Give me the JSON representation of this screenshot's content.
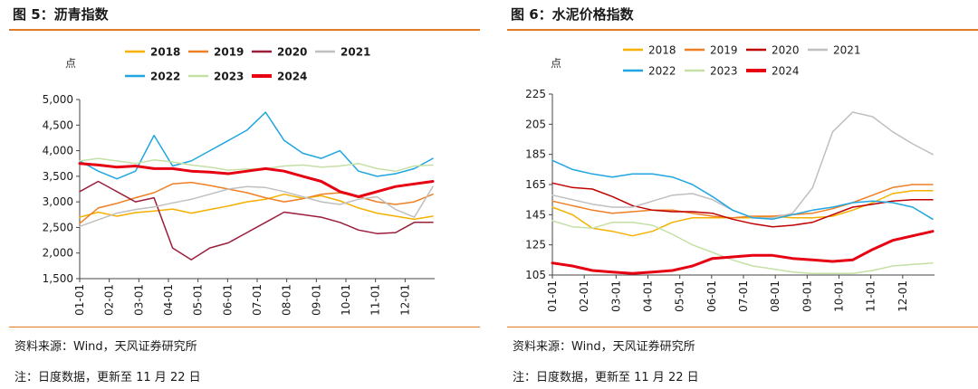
{
  "figure_left": {
    "title": "图 5：沥青指数",
    "source": "资料来源：Wind，天风证券研究所",
    "note": "注：日度数据，更新至 11 月 22 日"
  },
  "figure_right": {
    "title": "图 6：水泥价格指数",
    "source": "资料来源：Wind，天风证券研究所",
    "note": "注：日度数据，更新至 11 月 22 日"
  },
  "chart_data": [
    {
      "type": "line",
      "ylabel": "点",
      "ylim": [
        1500,
        5000
      ],
      "yticks": [
        "1,500",
        "2,000",
        "2,500",
        "3,000",
        "3,500",
        "4,000",
        "4,500",
        "5,000"
      ],
      "xticks": [
        "01-01",
        "02-01",
        "03-01",
        "04-01",
        "05-01",
        "06-01",
        "07-01",
        "08-01",
        "09-01",
        "10-01",
        "11-01",
        "12-01"
      ],
      "legend_position": "top",
      "series": [
        {
          "name": "2018",
          "color": "#f5b000",
          "width": 1.5,
          "y": [
            2700,
            2800,
            2720,
            2790,
            2820,
            2860,
            2780,
            2850,
            2920,
            3000,
            3050,
            3150,
            3070,
            3120,
            3020,
            2880,
            2780,
            2720,
            2660,
            2720
          ]
        },
        {
          "name": "2019",
          "color": "#ef7f24",
          "width": 1.5,
          "y": [
            2580,
            2880,
            2970,
            3080,
            3180,
            3350,
            3380,
            3320,
            3250,
            3180,
            3080,
            3000,
            3060,
            3150,
            3180,
            3100,
            3000,
            2950,
            3000,
            3150
          ]
        },
        {
          "name": "2020",
          "color": "#9b1d3a",
          "width": 1.5,
          "y": [
            3200,
            3400,
            3200,
            3000,
            3080,
            2100,
            1870,
            2100,
            2200,
            2400,
            2600,
            2800,
            2750,
            2700,
            2600,
            2450,
            2380,
            2400,
            2600,
            2600
          ]
        },
        {
          "name": "2021",
          "color": "#bfbfbf",
          "width": 1.5,
          "y": [
            2520,
            2650,
            2780,
            2850,
            2900,
            2980,
            3050,
            3150,
            3250,
            3300,
            3280,
            3200,
            3100,
            3000,
            2950,
            3050,
            3100,
            2850,
            2700,
            3300
          ]
        },
        {
          "name": "2022",
          "color": "#1fa6e0",
          "width": 1.5,
          "y": [
            3800,
            3600,
            3450,
            3600,
            4300,
            3700,
            3800,
            4000,
            4200,
            4400,
            4750,
            4200,
            3950,
            3850,
            4000,
            3600,
            3500,
            3550,
            3650,
            3850
          ]
        },
        {
          "name": "2023",
          "color": "#c5e0a5",
          "width": 1.5,
          "y": [
            3800,
            3850,
            3800,
            3750,
            3820,
            3780,
            3720,
            3680,
            3620,
            3640,
            3650,
            3700,
            3720,
            3680,
            3700,
            3750,
            3650,
            3600,
            3700,
            3720
          ]
        },
        {
          "name": "2024",
          "color": "#e60012",
          "width": 3,
          "y": [
            3750,
            3720,
            3680,
            3700,
            3650,
            3650,
            3600,
            3580,
            3550,
            3600,
            3650,
            3600,
            3500,
            3400,
            3200,
            3100,
            3200,
            3300,
            3350,
            3400
          ]
        }
      ]
    },
    {
      "type": "line",
      "ylabel": "点",
      "ylim": [
        105,
        225
      ],
      "yticks": [
        "105",
        "125",
        "145",
        "165",
        "185",
        "205",
        "225"
      ],
      "xticks": [
        "01-01",
        "02-01",
        "03-01",
        "04-01",
        "05-01",
        "06-01",
        "07-01",
        "08-01",
        "09-01",
        "10-01",
        "11-01",
        "12-01"
      ],
      "legend_position": "top",
      "series": [
        {
          "name": "2018",
          "color": "#f5b000",
          "width": 1.5,
          "y": [
            150,
            145,
            136,
            134,
            131,
            134,
            140,
            143,
            143,
            143,
            143,
            144,
            143,
            143,
            144,
            148,
            153,
            159,
            161,
            161
          ]
        },
        {
          "name": "2019",
          "color": "#ef7f24",
          "width": 1.5,
          "y": [
            154,
            151,
            148,
            146,
            147,
            148,
            148,
            146,
            144,
            143,
            144,
            144,
            145,
            146,
            149,
            153,
            158,
            163,
            165,
            165
          ]
        },
        {
          "name": "2020",
          "color": "#c00000",
          "width": 1.5,
          "y": [
            166,
            163,
            162,
            157,
            151,
            148,
            147,
            147,
            146,
            142,
            139,
            137,
            138,
            140,
            145,
            150,
            152,
            154,
            155,
            155
          ]
        },
        {
          "name": "2021",
          "color": "#bfbfbf",
          "width": 1.5,
          "y": [
            158,
            155,
            152,
            150,
            150,
            154,
            158,
            159,
            155,
            148,
            143,
            143,
            146,
            163,
            200,
            213,
            210,
            200,
            192,
            185
          ]
        },
        {
          "name": "2022",
          "color": "#1fa6e0",
          "width": 1.5,
          "y": [
            181,
            175,
            172,
            170,
            172,
            172,
            170,
            165,
            157,
            148,
            143,
            142,
            145,
            148,
            150,
            153,
            154,
            153,
            150,
            142
          ]
        },
        {
          "name": "2023",
          "color": "#c5e0a5",
          "width": 1.5,
          "y": [
            141,
            137,
            136,
            140,
            140,
            138,
            132,
            125,
            120,
            115,
            111,
            109,
            107,
            106,
            106,
            106,
            108,
            111,
            112,
            113
          ]
        },
        {
          "name": "2024",
          "color": "#e60012",
          "width": 3,
          "y": [
            113,
            111,
            108,
            107,
            106,
            107,
            108,
            111,
            116,
            117,
            118,
            118,
            116,
            115,
            114,
            115,
            122,
            128,
            131,
            134
          ]
        }
      ]
    }
  ]
}
